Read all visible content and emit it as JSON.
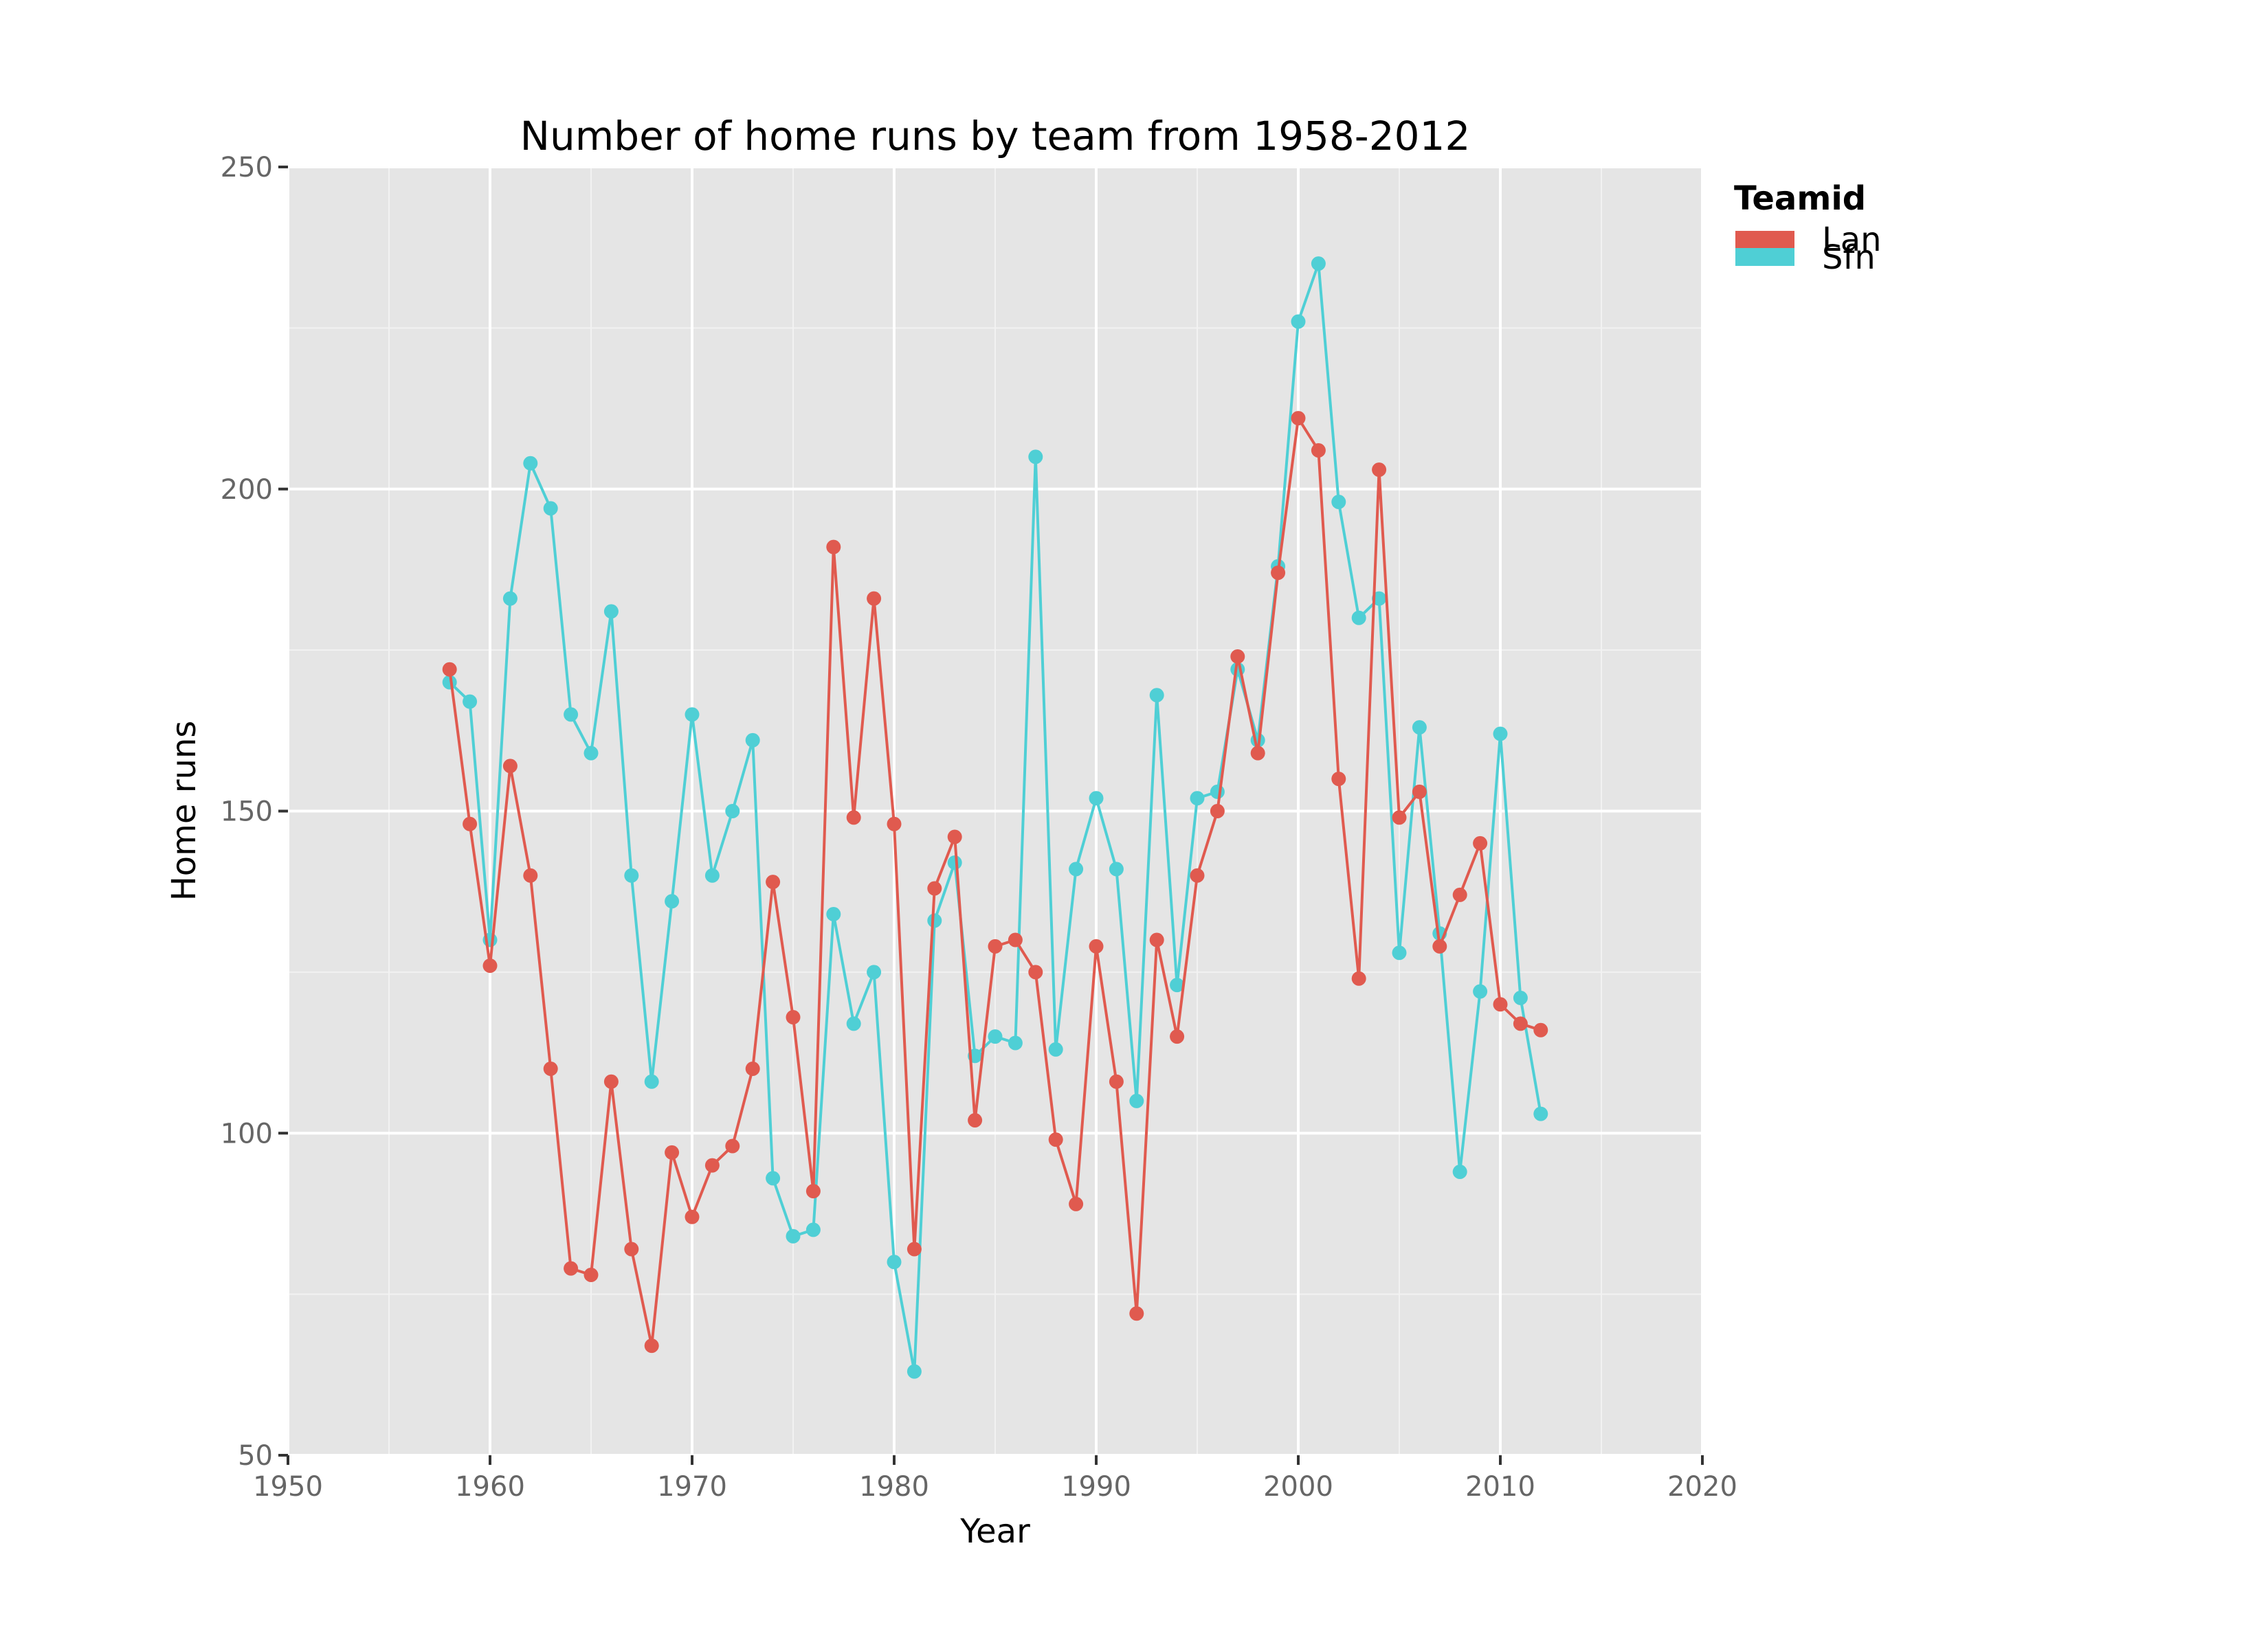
{
  "chart_data": {
    "type": "line",
    "title": "Number of home runs by team from 1958-2012",
    "xlabel": "Year",
    "ylabel": "Home runs",
    "xlim": [
      1950,
      2020
    ],
    "ylim": [
      50,
      250
    ],
    "xticks": [
      1950,
      1960,
      1970,
      1980,
      1990,
      2000,
      2010,
      2020
    ],
    "yticks": [
      50,
      100,
      150,
      200,
      250
    ],
    "grid": true,
    "legend": {
      "title": "Teamid",
      "placement": "top-right",
      "entries": [
        "Lan",
        "Sfn"
      ]
    },
    "series": [
      {
        "name": "Lan",
        "color": "#e05a4f",
        "x": [
          1958,
          1959,
          1960,
          1961,
          1962,
          1963,
          1964,
          1965,
          1966,
          1967,
          1968,
          1969,
          1970,
          1971,
          1972,
          1973,
          1974,
          1975,
          1976,
          1977,
          1978,
          1979,
          1980,
          1981,
          1982,
          1983,
          1984,
          1985,
          1986,
          1987,
          1988,
          1989,
          1990,
          1991,
          1992,
          1993,
          1994,
          1995,
          1996,
          1997,
          1998,
          1999,
          2000,
          2001,
          2002,
          2003,
          2004,
          2005,
          2006,
          2007,
          2008,
          2009,
          2010,
          2011,
          2012
        ],
        "y": [
          172,
          148,
          126,
          157,
          140,
          110,
          79,
          78,
          108,
          82,
          67,
          97,
          87,
          95,
          98,
          110,
          139,
          118,
          91,
          191,
          149,
          183,
          148,
          82,
          138,
          146,
          102,
          129,
          130,
          125,
          99,
          89,
          129,
          108,
          72,
          130,
          115,
          140,
          150,
          174,
          159,
          187,
          211,
          206,
          155,
          124,
          203,
          149,
          153,
          129,
          137,
          145,
          120,
          117,
          116
        ]
      },
      {
        "name": "Sfn",
        "color": "#4fcfd5",
        "x": [
          1958,
          1959,
          1960,
          1961,
          1962,
          1963,
          1964,
          1965,
          1966,
          1967,
          1968,
          1969,
          1970,
          1971,
          1972,
          1973,
          1974,
          1975,
          1976,
          1977,
          1978,
          1979,
          1980,
          1981,
          1982,
          1983,
          1984,
          1985,
          1986,
          1987,
          1988,
          1989,
          1990,
          1991,
          1992,
          1993,
          1994,
          1995,
          1996,
          1997,
          1998,
          1999,
          2000,
          2001,
          2002,
          2003,
          2004,
          2005,
          2006,
          2007,
          2008,
          2009,
          2010,
          2011,
          2012
        ],
        "y": [
          170,
          167,
          130,
          183,
          204,
          197,
          165,
          159,
          181,
          140,
          108,
          136,
          165,
          140,
          150,
          161,
          93,
          84,
          85,
          134,
          117,
          125,
          80,
          63,
          133,
          142,
          112,
          115,
          114,
          205,
          113,
          141,
          152,
          141,
          105,
          168,
          123,
          152,
          153,
          172,
          161,
          188,
          226,
          235,
          198,
          180,
          183,
          128,
          163,
          131,
          94,
          122,
          162,
          121,
          103
        ]
      }
    ]
  }
}
